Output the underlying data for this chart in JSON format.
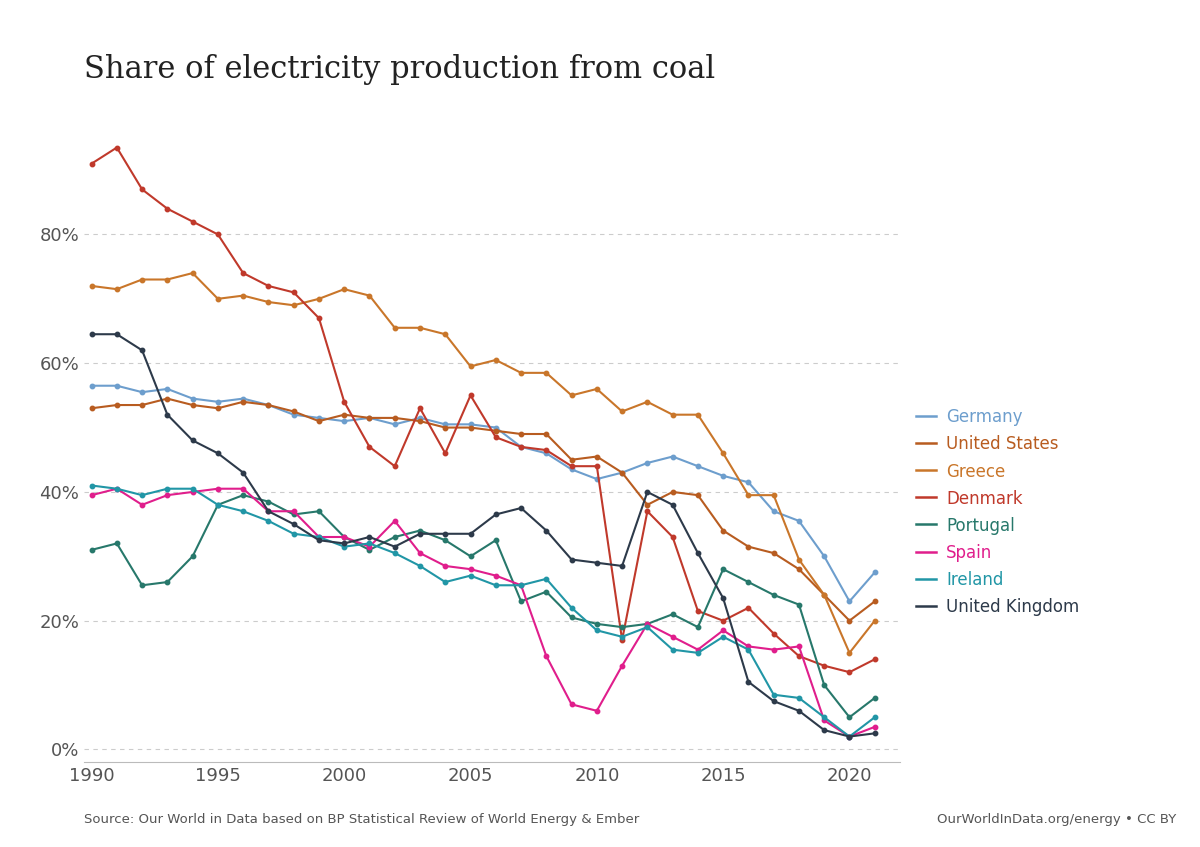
{
  "title": "Share of electricity production from coal",
  "source_text": "Source: Our World in Data based on BP Statistical Review of World Energy & Ember",
  "source_right": "OurWorldInData.org/energy • CC BY",
  "yticks": [
    0,
    20,
    40,
    60,
    80
  ],
  "ytick_labels": [
    "0%",
    "20%",
    "40%",
    "60%",
    "80%"
  ],
  "xmin": 1990,
  "xmax": 2022,
  "ymin": -2,
  "ymax": 98,
  "series": {
    "Germany": {
      "color": "#6d9ecd",
      "data": {
        "1990": 56.5,
        "1991": 56.5,
        "1992": 55.5,
        "1993": 56.0,
        "1994": 54.5,
        "1995": 54.0,
        "1996": 54.5,
        "1997": 53.5,
        "1998": 52.0,
        "1999": 51.5,
        "2000": 51.0,
        "2001": 51.5,
        "2002": 50.5,
        "2003": 51.5,
        "2004": 50.5,
        "2005": 50.5,
        "2006": 50.0,
        "2007": 47.0,
        "2008": 46.0,
        "2009": 43.5,
        "2010": 42.0,
        "2011": 43.0,
        "2012": 44.5,
        "2013": 45.5,
        "2014": 44.0,
        "2015": 42.5,
        "2016": 41.5,
        "2017": 37.0,
        "2018": 35.5,
        "2019": 30.0,
        "2020": 23.0,
        "2021": 27.5
      }
    },
    "United States": {
      "color": "#b85c20",
      "data": {
        "1990": 53.0,
        "1991": 53.5,
        "1992": 53.5,
        "1993": 54.5,
        "1994": 53.5,
        "1995": 53.0,
        "1996": 54.0,
        "1997": 53.5,
        "1998": 52.5,
        "1999": 51.0,
        "2000": 52.0,
        "2001": 51.5,
        "2002": 51.5,
        "2003": 51.0,
        "2004": 50.0,
        "2005": 50.0,
        "2006": 49.5,
        "2007": 49.0,
        "2008": 49.0,
        "2009": 45.0,
        "2010": 45.5,
        "2011": 43.0,
        "2012": 38.0,
        "2013": 40.0,
        "2014": 39.5,
        "2015": 34.0,
        "2016": 31.5,
        "2017": 30.5,
        "2018": 28.0,
        "2019": 24.0,
        "2020": 20.0,
        "2021": 23.0
      }
    },
    "Greece": {
      "color": "#c9762a",
      "data": {
        "1990": 72.0,
        "1991": 71.5,
        "1992": 73.0,
        "1993": 73.0,
        "1994": 74.0,
        "1995": 70.0,
        "1996": 70.5,
        "1997": 69.5,
        "1998": 69.0,
        "1999": 70.0,
        "2000": 71.5,
        "2001": 70.5,
        "2002": 65.5,
        "2003": 65.5,
        "2004": 64.5,
        "2005": 59.5,
        "2006": 60.5,
        "2007": 58.5,
        "2008": 58.5,
        "2009": 55.0,
        "2010": 56.0,
        "2011": 52.5,
        "2012": 54.0,
        "2013": 52.0,
        "2014": 52.0,
        "2015": 46.0,
        "2016": 39.5,
        "2017": 39.5,
        "2018": 29.5,
        "2019": 24.0,
        "2020": 15.0,
        "2021": 20.0
      }
    },
    "Denmark": {
      "color": "#c0392b",
      "data": {
        "1990": 91.0,
        "1991": 93.5,
        "1992": 87.0,
        "1993": 84.0,
        "1994": 82.0,
        "1995": 80.0,
        "1996": 74.0,
        "1997": 72.0,
        "1998": 71.0,
        "1999": 67.0,
        "2000": 54.0,
        "2001": 47.0,
        "2002": 44.0,
        "2003": 53.0,
        "2004": 46.0,
        "2005": 55.0,
        "2006": 48.5,
        "2007": 47.0,
        "2008": 46.5,
        "2009": 44.0,
        "2010": 44.0,
        "2011": 17.0,
        "2012": 37.0,
        "2013": 33.0,
        "2014": 21.5,
        "2015": 20.0,
        "2016": 22.0,
        "2017": 18.0,
        "2018": 14.5,
        "2019": 13.0,
        "2020": 12.0,
        "2021": 14.0
      }
    },
    "Portugal": {
      "color": "#27786b",
      "data": {
        "1990": 31.0,
        "1991": 32.0,
        "1992": 25.5,
        "1993": 26.0,
        "1994": 30.0,
        "1995": 38.0,
        "1996": 39.5,
        "1997": 38.5,
        "1998": 36.5,
        "1999": 37.0,
        "2000": 33.0,
        "2001": 31.0,
        "2002": 33.0,
        "2003": 34.0,
        "2004": 32.5,
        "2005": 30.0,
        "2006": 32.5,
        "2007": 23.0,
        "2008": 24.5,
        "2009": 20.5,
        "2010": 19.5,
        "2011": 19.0,
        "2012": 19.5,
        "2013": 21.0,
        "2014": 19.0,
        "2015": 28.0,
        "2016": 26.0,
        "2017": 24.0,
        "2018": 22.5,
        "2019": 10.0,
        "2020": 5.0,
        "2021": 8.0
      }
    },
    "Spain": {
      "color": "#e01e8c",
      "data": {
        "1990": 39.5,
        "1991": 40.5,
        "1992": 38.0,
        "1993": 39.5,
        "1994": 40.0,
        "1995": 40.5,
        "1996": 40.5,
        "1997": 37.0,
        "1998": 37.0,
        "1999": 33.0,
        "2000": 33.0,
        "2001": 31.5,
        "2002": 35.5,
        "2003": 30.5,
        "2004": 28.5,
        "2005": 28.0,
        "2006": 27.0,
        "2007": 25.5,
        "2008": 14.5,
        "2009": 7.0,
        "2010": 6.0,
        "2011": 13.0,
        "2012": 19.5,
        "2013": 17.5,
        "2014": 15.5,
        "2015": 18.5,
        "2016": 16.0,
        "2017": 15.5,
        "2018": 16.0,
        "2019": 4.5,
        "2020": 2.0,
        "2021": 3.5
      }
    },
    "Ireland": {
      "color": "#2196a6",
      "data": {
        "1990": 41.0,
        "1991": 40.5,
        "1992": 39.5,
        "1993": 40.5,
        "1994": 40.5,
        "1995": 38.0,
        "1996": 37.0,
        "1997": 35.5,
        "1998": 33.5,
        "1999": 33.0,
        "2000": 31.5,
        "2001": 32.0,
        "2002": 30.5,
        "2003": 28.5,
        "2004": 26.0,
        "2005": 27.0,
        "2006": 25.5,
        "2007": 25.5,
        "2008": 26.5,
        "2009": 22.0,
        "2010": 18.5,
        "2011": 17.5,
        "2012": 19.0,
        "2013": 15.5,
        "2014": 15.0,
        "2015": 17.5,
        "2016": 15.5,
        "2017": 8.5,
        "2018": 8.0,
        "2019": 5.0,
        "2020": 2.0,
        "2021": 5.0
      }
    },
    "United Kingdom": {
      "color": "#2d3a4a",
      "data": {
        "1990": 64.5,
        "1991": 64.5,
        "1992": 62.0,
        "1993": 52.0,
        "1994": 48.0,
        "1995": 46.0,
        "1996": 43.0,
        "1997": 37.0,
        "1998": 35.0,
        "1999": 32.5,
        "2000": 32.0,
        "2001": 33.0,
        "2002": 31.5,
        "2003": 33.5,
        "2004": 33.5,
        "2005": 33.5,
        "2006": 36.5,
        "2007": 37.5,
        "2008": 34.0,
        "2009": 29.5,
        "2010": 29.0,
        "2011": 28.5,
        "2012": 40.0,
        "2013": 38.0,
        "2014": 30.5,
        "2015": 23.5,
        "2016": 10.5,
        "2017": 7.5,
        "2018": 6.0,
        "2019": 3.0,
        "2020": 2.0,
        "2021": 2.5
      }
    }
  }
}
